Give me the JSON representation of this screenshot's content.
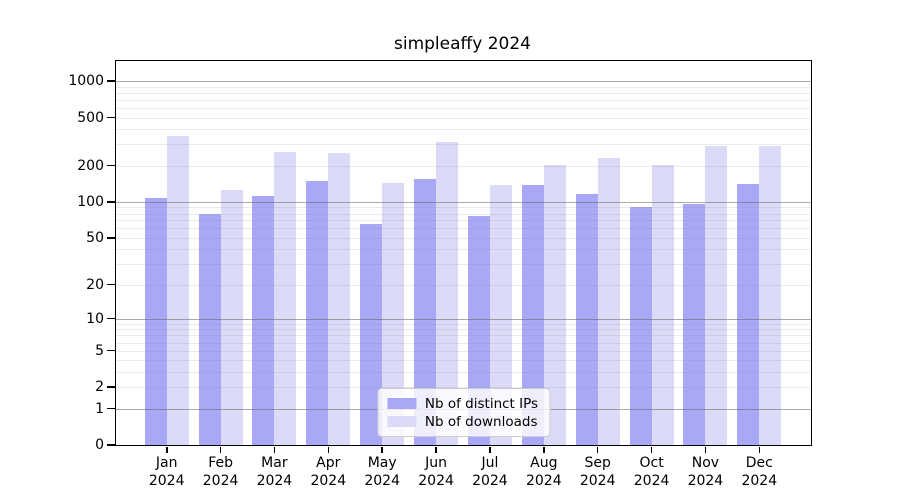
{
  "title": "simpleaffy 2024",
  "chart_data": {
    "type": "bar",
    "title": "simpleaffy 2024",
    "categories": [
      "Jan 2024",
      "Feb 2024",
      "Mar 2024",
      "Apr 2024",
      "May 2024",
      "Jun 2024",
      "Jul 2024",
      "Aug 2024",
      "Sep 2024",
      "Oct 2024",
      "Nov 2024",
      "Dec 2024"
    ],
    "series": [
      {
        "name": "Nb of distinct IPs",
        "color": "#a8a8f6",
        "values": [
          108,
          80,
          113,
          150,
          65,
          156,
          76,
          138,
          116,
          90,
          96,
          141
        ]
      },
      {
        "name": "Nb of downloads",
        "color": "#dbdbf8",
        "values": [
          350,
          125,
          258,
          255,
          143,
          315,
          138,
          203,
          230,
          203,
          289,
          293
        ]
      }
    ],
    "xlabel": "",
    "ylabel": "",
    "y_ticks": [
      0,
      1,
      2,
      5,
      10,
      20,
      50,
      100,
      200,
      500,
      1000
    ],
    "major_gridlines": [
      1,
      10,
      100,
      1000
    ],
    "scale": "log1p",
    "ylim": [
      0,
      1200
    ],
    "grid": "on",
    "legend_position": "bottom-center"
  }
}
